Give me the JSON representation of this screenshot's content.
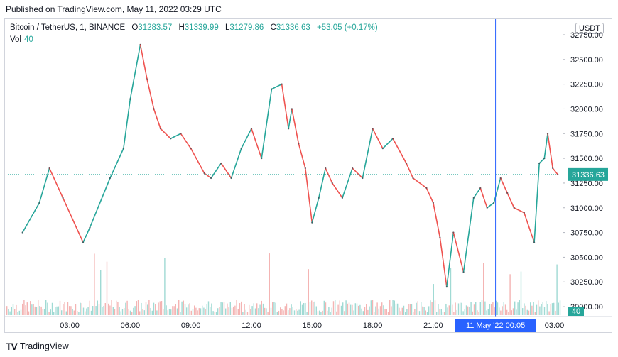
{
  "header": {
    "published": "Published on TradingView.com, May 11, 2022 03:29 UTC"
  },
  "legend": {
    "symbol": "Bitcoin / TetherUS, 1, BINANCE",
    "o_label": "O",
    "o_value": "31283.57",
    "h_label": "H",
    "h_value": "31339.99",
    "l_label": "L",
    "l_value": "31279.86",
    "c_label": "C",
    "c_value": "31336.63",
    "change": "+53.05 (+0.17%)",
    "vol_label": "Vol",
    "vol_value": "40"
  },
  "axis": {
    "currency": "USDT"
  },
  "crosshair_label": {
    "date": "11 May '22",
    "time": "00:05"
  },
  "last_price_label": "31336.63",
  "vol_badge": "40",
  "footer": {
    "brand": "TradingView"
  },
  "colors": {
    "up": "#26a69a",
    "down": "#ef5350",
    "crosshair": "#2962ff",
    "last_line": "#26a69a"
  },
  "chart_data": {
    "type": "line",
    "title": "Bitcoin / TetherUS, 1, BINANCE",
    "ylim": [
      29900,
      32800
    ],
    "y_ticks": [
      30000,
      30250,
      30500,
      30750,
      31000,
      31250,
      31500,
      31750,
      32000,
      32250,
      32500,
      32750
    ],
    "y_tick_labels": [
      "30000.00",
      "30250.00",
      "30500.00",
      "30750.00",
      "31000.00",
      "31250.00",
      "31500.00",
      "31750.00",
      "32000.00",
      "32250.00",
      "32500.00",
      "32750.00"
    ],
    "x_ticks": [
      "03:00",
      "06:00",
      "09:00",
      "12:00",
      "15:00",
      "18:00",
      "21:00",
      "03:00"
    ],
    "x": [
      "00:40",
      "01:30",
      "02:00",
      "02:40",
      "03:40",
      "04:00",
      "05:00",
      "05:40",
      "06:00",
      "06:30",
      "06:50",
      "07:10",
      "07:30",
      "08:00",
      "08:30",
      "09:00",
      "09:40",
      "10:00",
      "10:30",
      "11:00",
      "11:30",
      "12:00",
      "12:30",
      "13:00",
      "13:30",
      "13:50",
      "14:00",
      "14:20",
      "14:40",
      "15:00",
      "15:20",
      "15:40",
      "16:00",
      "16:30",
      "17:00",
      "17:30",
      "18:00",
      "18:30",
      "19:00",
      "19:40",
      "20:00",
      "20:40",
      "21:00",
      "21:20",
      "21:40",
      "22:00",
      "22:30",
      "23:00",
      "23:20",
      "23:40",
      "00:00",
      "00:20",
      "00:40",
      "01:00",
      "01:30",
      "02:00",
      "02:15",
      "02:30",
      "02:40",
      "02:55",
      "03:10"
    ],
    "series": [
      {
        "values": [
          30750,
          31050,
          31400,
          31100,
          30650,
          30800,
          31300,
          31600,
          32100,
          32650,
          32300,
          32000,
          31800,
          31700,
          31750,
          31600,
          31350,
          31300,
          31450,
          31300,
          31600,
          31800,
          31500,
          32200,
          32250,
          31800,
          32000,
          31650,
          31400,
          30850,
          31100,
          31400,
          31250,
          31100,
          31400,
          31300,
          31800,
          31600,
          31700,
          31450,
          31300,
          31200,
          31050,
          30700,
          30200,
          30750,
          30350,
          31100,
          31200,
          31000,
          31050,
          31300,
          31150,
          31000,
          30950,
          30650,
          31450,
          31500,
          31750,
          31400,
          31336
        ]
      }
    ],
    "volume": {
      "last": 40
    },
    "last_price": 31336.63,
    "crosshair_x": "00:05"
  }
}
